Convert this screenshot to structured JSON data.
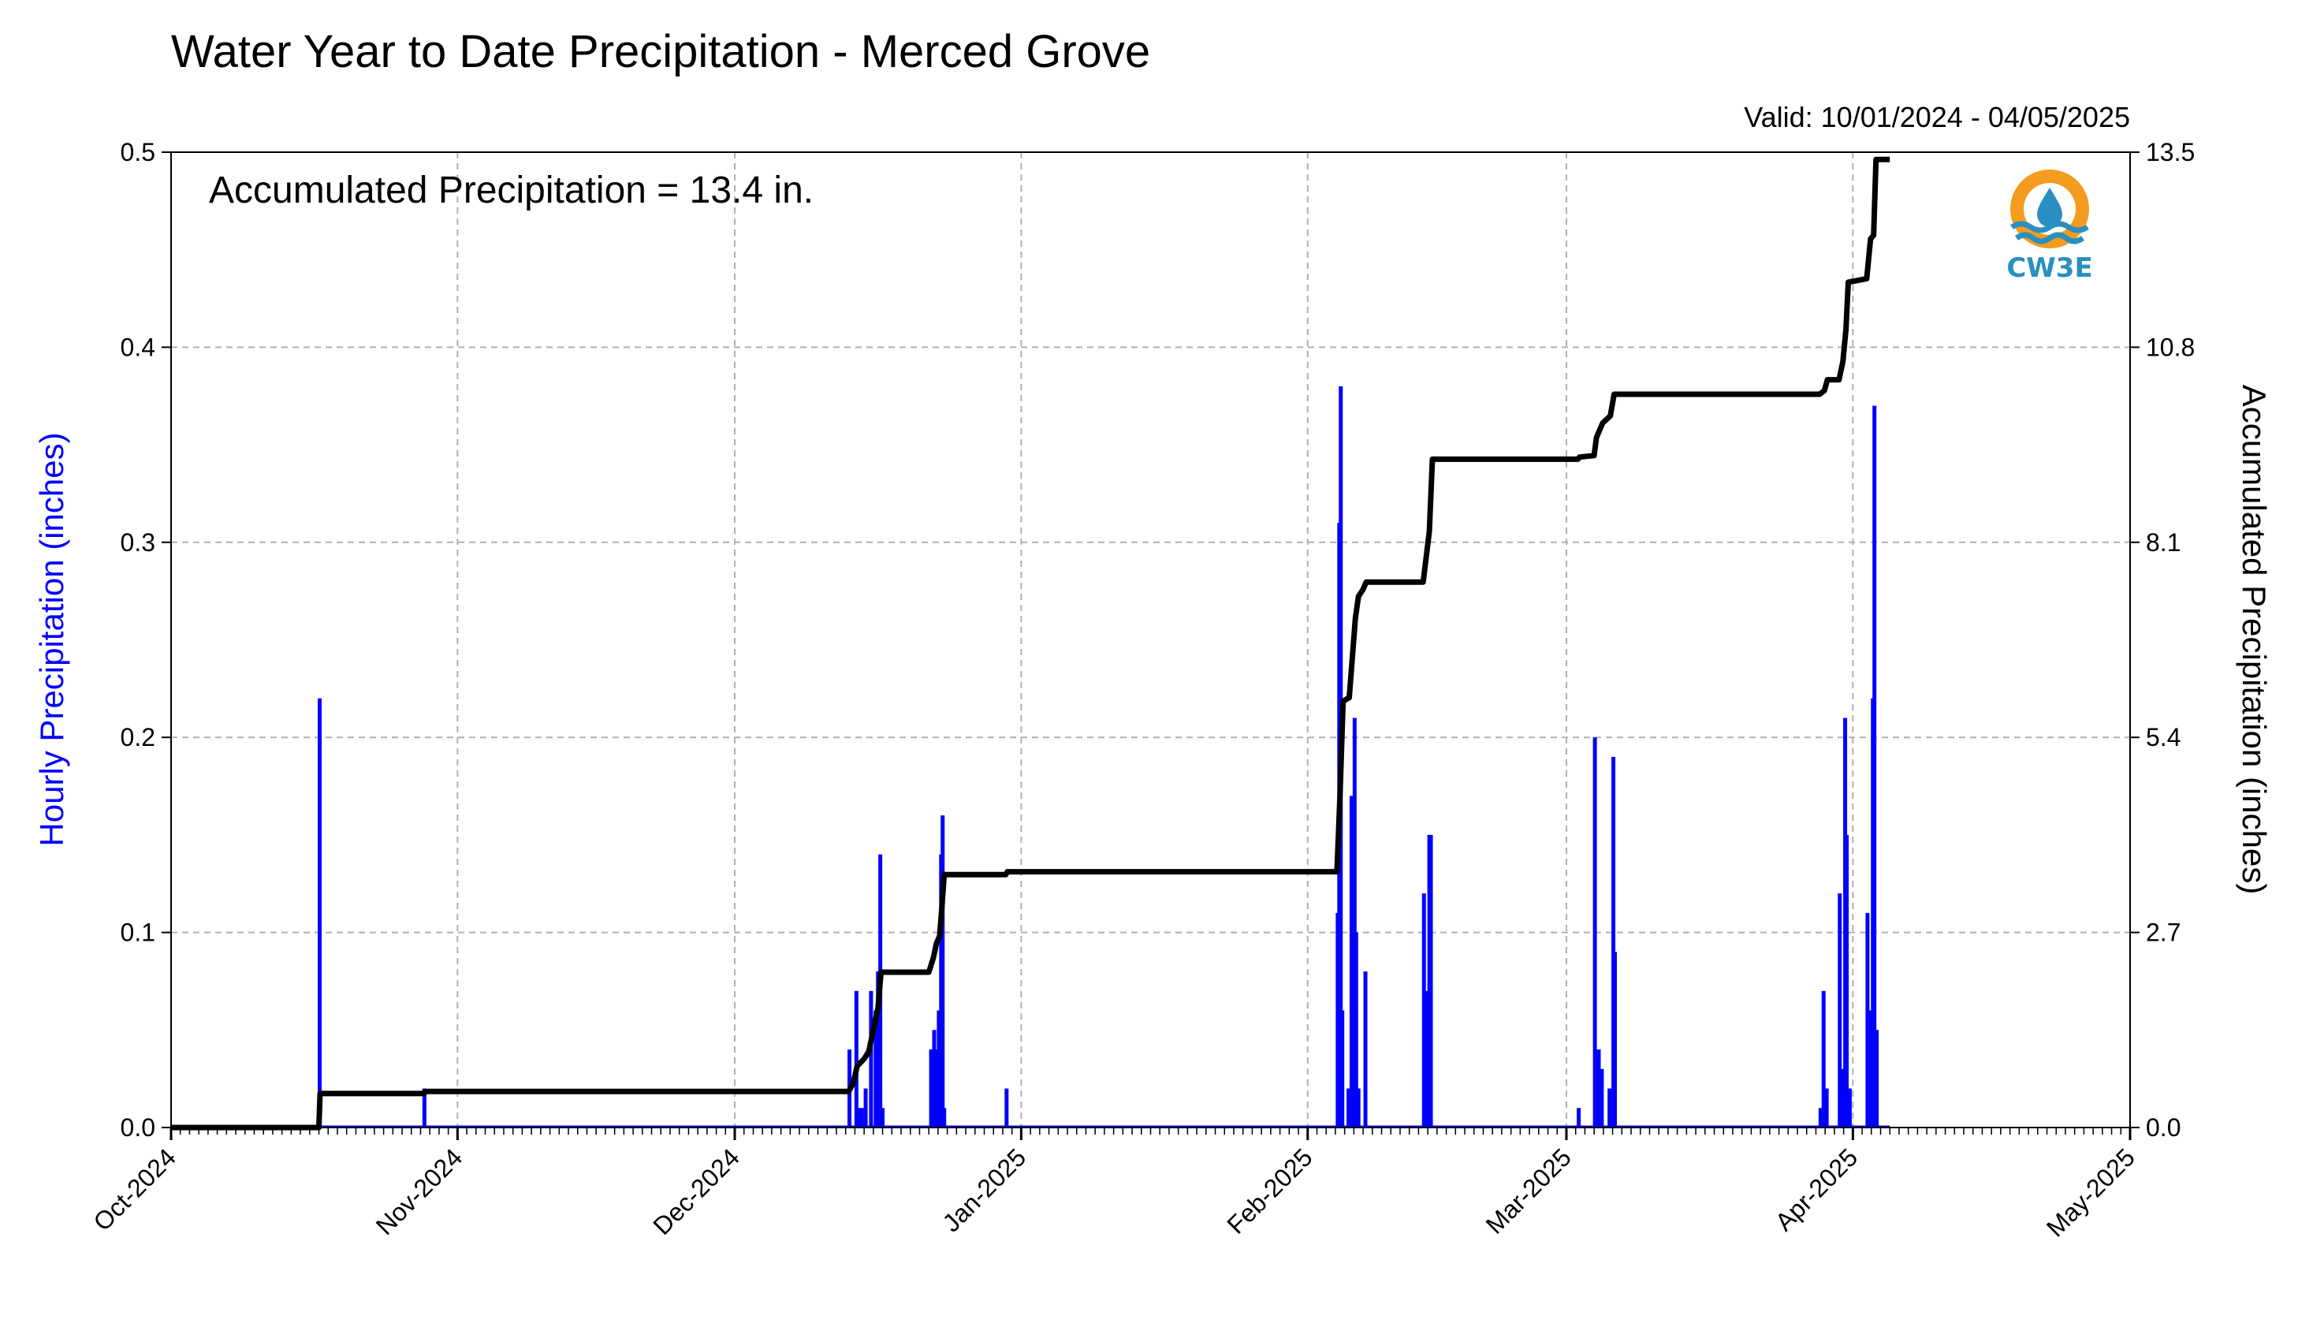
{
  "chart_data": {
    "type": "bar",
    "combo": "hourly bars (left axis) + accumulated step line (right axis)",
    "title": "Water Year to Date Precipitation - Merced Grove",
    "valid_text": "Valid: 10/01/2024 - 04/05/2025",
    "annotation": "Accumulated Precipitation = 13.4 in.",
    "ylabel_left": "Hourly Precipitation (inches)",
    "ylabel_right": "Accumulated Precipitation (inches)",
    "ylim_left": [
      0,
      0.5
    ],
    "ylim_right": [
      0,
      13.5
    ],
    "yticks_left": [
      "0.0",
      "0.1",
      "0.2",
      "0.3",
      "0.4",
      "0.5"
    ],
    "yticks_right": [
      "0.0",
      "2.7",
      "5.4",
      "8.1",
      "10.8",
      "13.5"
    ],
    "xlim": [
      "2024-10-01",
      "2025-05-01"
    ],
    "xticks": [
      {
        "date": "2024-10-01",
        "label": "Oct-2024"
      },
      {
        "date": "2024-11-01",
        "label": "Nov-2024"
      },
      {
        "date": "2024-12-01",
        "label": "Dec-2024"
      },
      {
        "date": "2025-01-01",
        "label": "Jan-2025"
      },
      {
        "date": "2025-02-01",
        "label": "Feb-2025"
      },
      {
        "date": "2025-03-01",
        "label": "Mar-2025"
      },
      {
        "date": "2025-04-01",
        "label": "Apr-2025"
      },
      {
        "date": "2025-05-01",
        "label": "May-2025"
      }
    ],
    "grid": true,
    "hourly_color": "#0000ff",
    "accum_color": "#000000",
    "hourly_series": {
      "name": "Hourly Precipitation",
      "points": [
        [
          "2024-10-17 02:00",
          0.22
        ],
        [
          "2024-10-28 10:00",
          0.02
        ],
        [
          "2024-12-13 10:00",
          0.04
        ],
        [
          "2024-12-14 04:00",
          0.07
        ],
        [
          "2024-12-14 10:00",
          0.01
        ],
        [
          "2024-12-14 18:00",
          0.01
        ],
        [
          "2024-12-15 04:00",
          0.02
        ],
        [
          "2024-12-15 18:00",
          0.07
        ],
        [
          "2024-12-16 06:00",
          0.06
        ],
        [
          "2024-12-16 12:00",
          0.08
        ],
        [
          "2024-12-16 18:00",
          0.14
        ],
        [
          "2024-12-17 00:00",
          0.01
        ],
        [
          "2024-12-22 06:00",
          0.04
        ],
        [
          "2024-12-22 14:00",
          0.05
        ],
        [
          "2024-12-22 20:00",
          0.04
        ],
        [
          "2024-12-23 02:00",
          0.06
        ],
        [
          "2024-12-23 08:00",
          0.14
        ],
        [
          "2024-12-23 12:00",
          0.16
        ],
        [
          "2024-12-23 16:00",
          0.01
        ],
        [
          "2024-12-30 10:00",
          0.02
        ],
        [
          "2025-02-04 06:00",
          0.11
        ],
        [
          "2025-02-04 10:00",
          0.31
        ],
        [
          "2025-02-04 14:00",
          0.38
        ],
        [
          "2025-02-04 18:00",
          0.06
        ],
        [
          "2025-02-05 10:00",
          0.02
        ],
        [
          "2025-02-05 18:00",
          0.17
        ],
        [
          "2025-02-06 02:00",
          0.21
        ],
        [
          "2025-02-06 06:00",
          0.1
        ],
        [
          "2025-02-06 12:00",
          0.02
        ],
        [
          "2025-02-07 06:00",
          0.08
        ],
        [
          "2025-02-13 14:00",
          0.12
        ],
        [
          "2025-02-13 20:00",
          0.07
        ],
        [
          "2025-02-14 04:00",
          0.15
        ],
        [
          "2025-02-14 08:00",
          0.15
        ],
        [
          "2025-03-02 08:00",
          0.01
        ],
        [
          "2025-03-04 02:00",
          0.2
        ],
        [
          "2025-03-04 08:00",
          0.03
        ],
        [
          "2025-03-04 12:00",
          0.04
        ],
        [
          "2025-03-04 20:00",
          0.03
        ],
        [
          "2025-03-05 16:00",
          0.02
        ],
        [
          "2025-03-06 02:00",
          0.19
        ],
        [
          "2025-03-06 06:00",
          0.09
        ],
        [
          "2025-03-28 12:00",
          0.01
        ],
        [
          "2025-03-28 20:00",
          0.07
        ],
        [
          "2025-03-29 04:00",
          0.02
        ],
        [
          "2025-03-30 14:00",
          0.12
        ],
        [
          "2025-03-30 20:00",
          0.03
        ],
        [
          "2025-03-31 04:00",
          0.21
        ],
        [
          "2025-03-31 08:00",
          0.15
        ],
        [
          "2025-03-31 16:00",
          0.02
        ],
        [
          "2025-04-02 14:00",
          0.11
        ],
        [
          "2025-04-02 20:00",
          0.06
        ],
        [
          "2025-04-03 04:00",
          0.22
        ],
        [
          "2025-04-03 08:00",
          0.37
        ],
        [
          "2025-04-03 14:00",
          0.05
        ]
      ]
    },
    "accumulated_series": {
      "name": "Accumulated Precipitation",
      "points": [
        [
          "2024-10-01 00:00",
          0.0
        ],
        [
          "2024-10-17 00:00",
          0.0
        ],
        [
          "2024-10-17 03:00",
          0.47
        ],
        [
          "2024-10-28 09:00",
          0.47
        ],
        [
          "2024-10-28 11:00",
          0.5
        ],
        [
          "2024-12-13 08:00",
          0.5
        ],
        [
          "2024-12-13 20:00",
          0.62
        ],
        [
          "2024-12-14 06:00",
          0.85
        ],
        [
          "2024-12-15 00:00",
          0.95
        ],
        [
          "2024-12-15 12:00",
          1.05
        ],
        [
          "2024-12-16 00:00",
          1.35
        ],
        [
          "2024-12-16 12:00",
          1.65
        ],
        [
          "2024-12-16 20:00",
          2.15
        ],
        [
          "2024-12-22 00:00",
          2.15
        ],
        [
          "2024-12-22 12:00",
          2.35
        ],
        [
          "2024-12-22 20:00",
          2.55
        ],
        [
          "2024-12-23 04:00",
          2.65
        ],
        [
          "2024-12-23 10:00",
          3.05
        ],
        [
          "2024-12-23 16:00",
          3.5
        ],
        [
          "2024-12-30 08:00",
          3.5
        ],
        [
          "2024-12-30 12:00",
          3.54
        ],
        [
          "2025-02-04 04:00",
          3.54
        ],
        [
          "2025-02-04 12:00",
          4.6
        ],
        [
          "2025-02-04 20:00",
          5.9
        ],
        [
          "2025-02-05 12:00",
          5.95
        ],
        [
          "2025-02-05 20:00",
          6.5
        ],
        [
          "2025-02-06 04:00",
          7.05
        ],
        [
          "2025-02-06 12:00",
          7.35
        ],
        [
          "2025-02-07 00:00",
          7.45
        ],
        [
          "2025-02-07 08:00",
          7.55
        ],
        [
          "2025-02-13 12:00",
          7.55
        ],
        [
          "2025-02-13 20:00",
          7.9
        ],
        [
          "2025-02-14 04:00",
          8.25
        ],
        [
          "2025-02-14 12:00",
          9.25
        ],
        [
          "2025-03-02 06:00",
          9.25
        ],
        [
          "2025-03-02 10:00",
          9.28
        ],
        [
          "2025-03-04 00:00",
          9.3
        ],
        [
          "2025-03-04 06:00",
          9.55
        ],
        [
          "2025-03-04 22:00",
          9.75
        ],
        [
          "2025-03-05 18:00",
          9.85
        ],
        [
          "2025-03-06 04:00",
          10.15
        ],
        [
          "2025-03-06 08:00",
          10.15
        ],
        [
          "2025-03-28 10:00",
          10.15
        ],
        [
          "2025-03-28 22:00",
          10.2
        ],
        [
          "2025-03-29 06:00",
          10.35
        ],
        [
          "2025-03-30 12:00",
          10.35
        ],
        [
          "2025-03-30 22:00",
          10.6
        ],
        [
          "2025-03-31 06:00",
          11.05
        ],
        [
          "2025-03-31 12:00",
          11.7
        ],
        [
          "2025-04-02 12:00",
          11.75
        ],
        [
          "2025-04-02 22:00",
          12.3
        ],
        [
          "2025-04-03 06:00",
          12.35
        ],
        [
          "2025-04-03 12:00",
          13.4
        ],
        [
          "2025-04-05 00:00",
          13.4
        ]
      ]
    }
  },
  "logo": {
    "text": "CW3E",
    "ring_color": "#f39c1f",
    "wave_color": "#2a8fc1",
    "text_color": "#2a8fc1"
  }
}
